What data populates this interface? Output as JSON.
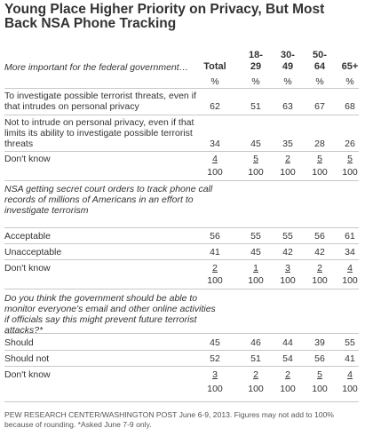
{
  "title": "Young Place Higher Priority on Privacy, But Most Back NSA Phone Tracking",
  "columns": [
    {
      "line1": "",
      "line2": "Total"
    },
    {
      "line1": "18-",
      "line2": "29"
    },
    {
      "line1": "30-",
      "line2": "49"
    },
    {
      "line1": "50-",
      "line2": "64"
    },
    {
      "line1": "",
      "line2": "65+"
    }
  ],
  "sections": [
    {
      "question": "More important for the federal government…",
      "percent_row": [
        "%",
        "%",
        "%",
        "%",
        "%"
      ],
      "rows": [
        {
          "label": "To investigate possible terrorist threats, even if that intrudes on personal privacy",
          "values": [
            "62",
            "51",
            "63",
            "67",
            "68"
          ]
        },
        {
          "label": "Not to intrude on personal privacy, even if that limits its ability to investigate possible terrorist threats",
          "values": [
            "34",
            "45",
            "35",
            "28",
            "26"
          ]
        },
        {
          "label": "Don't know",
          "values": [
            "4",
            "5",
            "2",
            "5",
            "5"
          ]
        }
      ],
      "total": [
        "100",
        "100",
        "100",
        "100",
        "100"
      ]
    },
    {
      "question": "NSA getting secret court orders to track phone call records of millions of Americans in an effort to investigate terrorism",
      "rows": [
        {
          "label": "Acceptable",
          "values": [
            "56",
            "55",
            "55",
            "56",
            "61"
          ]
        },
        {
          "label": "Unacceptable",
          "values": [
            "41",
            "45",
            "42",
            "42",
            "34"
          ]
        },
        {
          "label": "Don't know",
          "values": [
            "2",
            "1",
            "3",
            "2",
            "4"
          ]
        }
      ],
      "total": [
        "100",
        "100",
        "100",
        "100",
        "100"
      ]
    },
    {
      "question": "Do you think the government should be able to monitor everyone's email and other online activities if officials say this might prevent future terrorist attacks?*",
      "rows": [
        {
          "label": "Should",
          "values": [
            "45",
            "46",
            "44",
            "39",
            "55"
          ]
        },
        {
          "label": "Should not",
          "values": [
            "52",
            "51",
            "54",
            "56",
            "41"
          ]
        },
        {
          "label": "Don't know",
          "values": [
            "3",
            "2",
            "2",
            "5",
            "4"
          ]
        }
      ],
      "total": [
        "100",
        "100",
        "100",
        "100",
        "100"
      ]
    }
  ],
  "footnote": "PEW RESEARCH CENTER/WASHINGTON POST June 6-9, 2013. Figures may not add to 100% because of rounding. *Asked June 7-9 only."
}
